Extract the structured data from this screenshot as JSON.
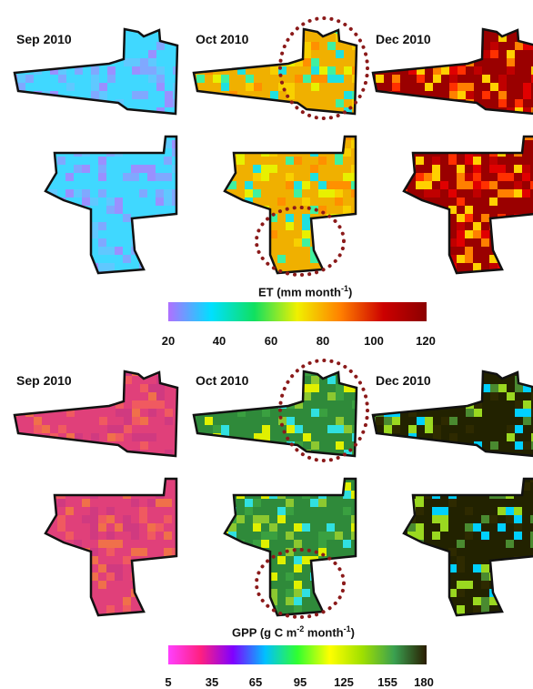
{
  "panels": {
    "et": {
      "col_labels": [
        "Sep 2010",
        "Oct 2010",
        "Dec 2010"
      ],
      "colorbar": {
        "title_main": "ET (mm month",
        "title_sup": "-1",
        "title_end": ")",
        "ticks": [
          "20",
          "40",
          "60",
          "80",
          "100",
          "120"
        ],
        "colors": [
          "#b070ff",
          "#00e0ff",
          "#10e060",
          "#f0f000",
          "#ff8000",
          "#cc0000",
          "#8b0000"
        ]
      }
    },
    "gpp": {
      "col_labels": [
        "Sep 2010",
        "Oct 2010",
        "Dec 2010"
      ],
      "colorbar": {
        "title_main": "GPP (g C m",
        "title_sup1": "-2",
        "title_mid": " month",
        "title_sup2": "-1",
        "title_end": ")",
        "ticks": [
          "5",
          "35",
          "65",
          "95",
          "125",
          "155",
          "180"
        ],
        "colors": [
          "#ff40ff",
          "#ff2080",
          "#8000ff",
          "#00c0ff",
          "#30ff30",
          "#ffff00",
          "#a0e000",
          "#3aa050",
          "#2a1c00"
        ]
      }
    }
  },
  "map_colors": {
    "et_sep": [
      "#40d8ff",
      "#60c8ff",
      "#80a8ff",
      "#9a90ff"
    ],
    "et_oct": [
      "#f0b000",
      "#f8d000",
      "#e8f000",
      "#ff9000",
      "#40f0a0",
      "#20e0e0"
    ],
    "et_dec": [
      "#9a0000",
      "#c00000",
      "#e00000",
      "#ff3000",
      "#ff8000",
      "#ffd000"
    ],
    "gpp_sep": [
      "#e0407a",
      "#f05a60",
      "#f0704a",
      "#d03a80"
    ],
    "gpp_oct": [
      "#2f8a3a",
      "#3aa040",
      "#8cc830",
      "#e0f000",
      "#30e0e0"
    ],
    "gpp_dec": [
      "#222200",
      "#2e2a00",
      "#4a8a30",
      "#9ad820",
      "#00d0ff"
    ]
  },
  "highlight_color": "#8b1a1a"
}
